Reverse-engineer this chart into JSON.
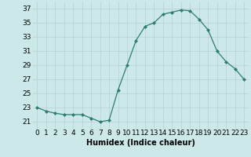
{
  "x": [
    0,
    1,
    2,
    3,
    4,
    5,
    6,
    7,
    8,
    9,
    10,
    11,
    12,
    13,
    14,
    15,
    16,
    17,
    18,
    19,
    20,
    21,
    22,
    23
  ],
  "y": [
    23,
    22.5,
    22.2,
    22,
    22,
    22,
    21.5,
    21,
    21.2,
    25.5,
    29,
    32.5,
    34.5,
    35,
    36.2,
    36.5,
    36.8,
    36.7,
    35.5,
    34,
    31,
    29.5,
    28.5,
    27
  ],
  "xlabel": "Humidex (Indice chaleur)",
  "ylim": [
    20,
    38
  ],
  "xlim": [
    -0.5,
    23.5
  ],
  "yticks": [
    21,
    23,
    25,
    27,
    29,
    31,
    33,
    35,
    37
  ],
  "xticks": [
    0,
    1,
    2,
    3,
    4,
    5,
    6,
    7,
    8,
    9,
    10,
    11,
    12,
    13,
    14,
    15,
    16,
    17,
    18,
    19,
    20,
    21,
    22,
    23
  ],
  "line_color": "#2e7d6e",
  "marker_color": "#2e7d6e",
  "bg_color": "#cce8e8",
  "grid_color": "#b8d4d4",
  "label_fontsize": 7,
  "tick_fontsize": 6.5
}
